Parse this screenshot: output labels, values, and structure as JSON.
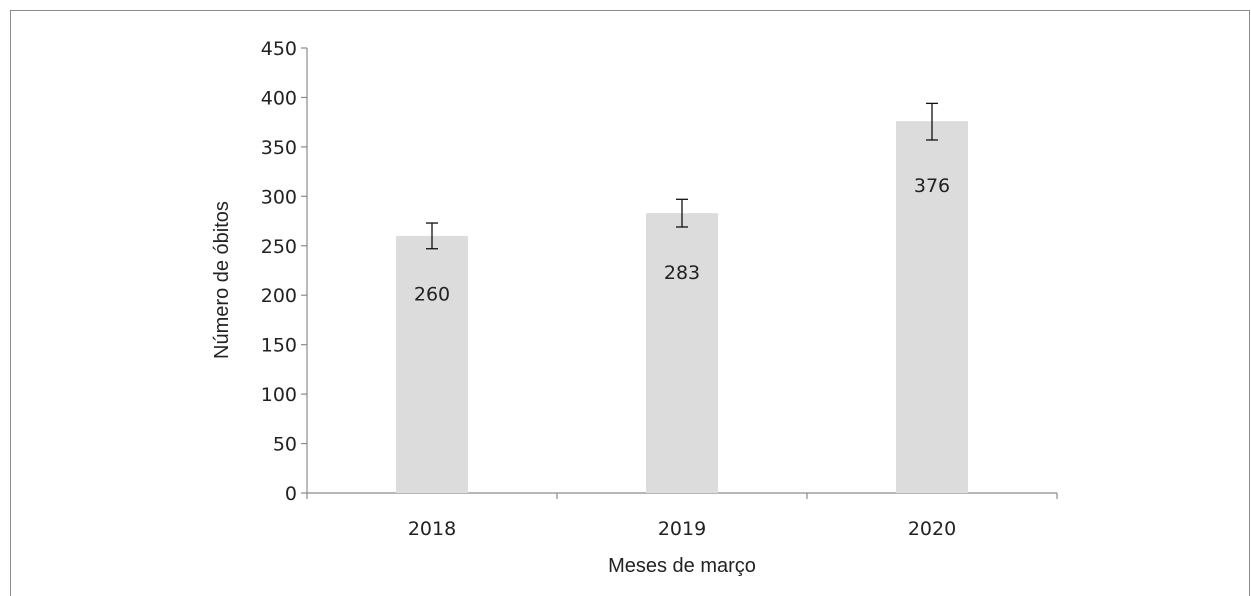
{
  "chart_data": {
    "type": "bar",
    "categories": [
      "2018",
      "2019",
      "2020"
    ],
    "values": [
      260,
      283,
      376
    ],
    "error": [
      {
        "low": 247,
        "high": 273
      },
      {
        "low": 269,
        "high": 297
      },
      {
        "low": 357,
        "high": 394
      }
    ],
    "data_labels": [
      "260",
      "283",
      "376"
    ],
    "xlabel": "Meses de março",
    "ylabel": "Número de óbitos",
    "ylim": [
      0,
      450
    ],
    "yticks": [
      "0",
      "50",
      "100",
      "150",
      "200",
      "250",
      "300",
      "350",
      "400",
      "450"
    ],
    "grid": false,
    "bar_color": "#dcdcdc",
    "axis_color": "#8c8c8c"
  }
}
